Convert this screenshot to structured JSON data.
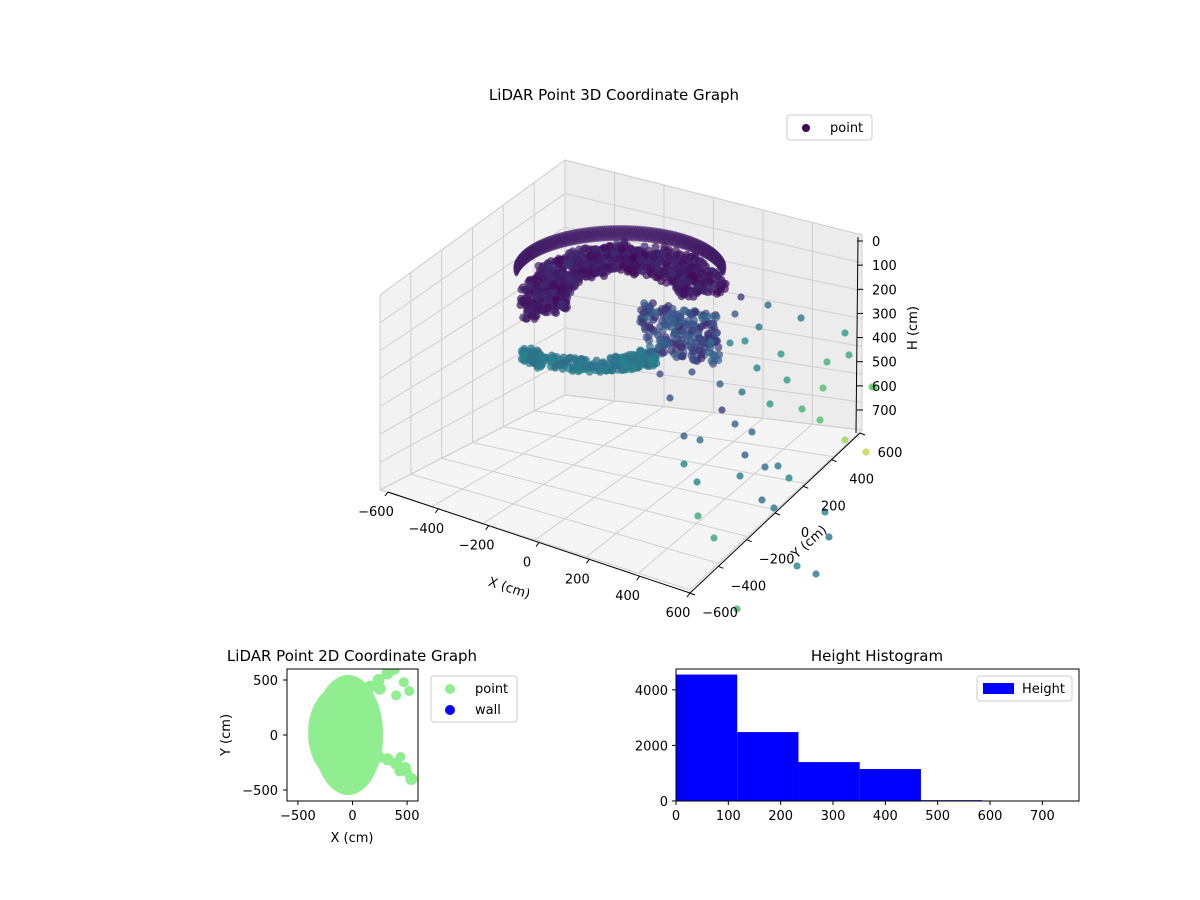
{
  "chart_data": [
    {
      "type": "scatter3d",
      "title": "LiDAR Point 3D Coordinate Graph",
      "xlabel": "X (cm)",
      "ylabel": "Y (cm)",
      "zlabel": "H (cm)",
      "xticks": [
        "−600",
        "−400",
        "−200",
        "0",
        "200",
        "400",
        "600"
      ],
      "yticks": [
        "−600",
        "−400",
        "−200",
        "0",
        "200",
        "400",
        "600"
      ],
      "zticks": [
        "0",
        "100",
        "200",
        "300",
        "400",
        "500",
        "600",
        "700"
      ],
      "xlim": [
        -600,
        600
      ],
      "ylim": [
        -600,
        600
      ],
      "zlim": [
        0,
        750
      ],
      "z_inverted": true,
      "colormap": "viridis",
      "legend": {
        "label": "point",
        "placement": "top-right"
      },
      "grid": true
    },
    {
      "type": "scatter",
      "title": "LiDAR Point 2D Coordinate Graph",
      "xlabel": "X (cm)",
      "ylabel": "Y (cm)",
      "xticks": [
        "−500",
        "0",
        "500"
      ],
      "yticks": [
        "−500",
        "0",
        "500"
      ],
      "xlim": [
        -600,
        600
      ],
      "ylim": [
        -600,
        600
      ],
      "series": [
        {
          "name": "point",
          "color": "#90ee90"
        },
        {
          "name": "wall",
          "color": "#0000ff"
        }
      ],
      "legend": {
        "placement": "outside-right"
      }
    },
    {
      "type": "bar",
      "title": "Height Histogram",
      "xticks": [
        "0",
        "100",
        "200",
        "300",
        "400",
        "500",
        "600",
        "700"
      ],
      "yticks": [
        "0",
        "2000",
        "4000"
      ],
      "xlim": [
        0,
        770
      ],
      "ylim": [
        0,
        4750
      ],
      "bins": [
        {
          "x0": 0,
          "x1": 117,
          "count": 4550
        },
        {
          "x0": 117,
          "x1": 234,
          "count": 2480
        },
        {
          "x0": 234,
          "x1": 351,
          "count": 1400
        },
        {
          "x0": 351,
          "x1": 468,
          "count": 1150
        },
        {
          "x0": 468,
          "x1": 585,
          "count": 30
        },
        {
          "x0": 585,
          "x1": 702,
          "count": 15
        }
      ],
      "series": [
        {
          "name": "Height",
          "color": "#0000ff"
        }
      ],
      "legend": {
        "placement": "top-right"
      }
    }
  ]
}
